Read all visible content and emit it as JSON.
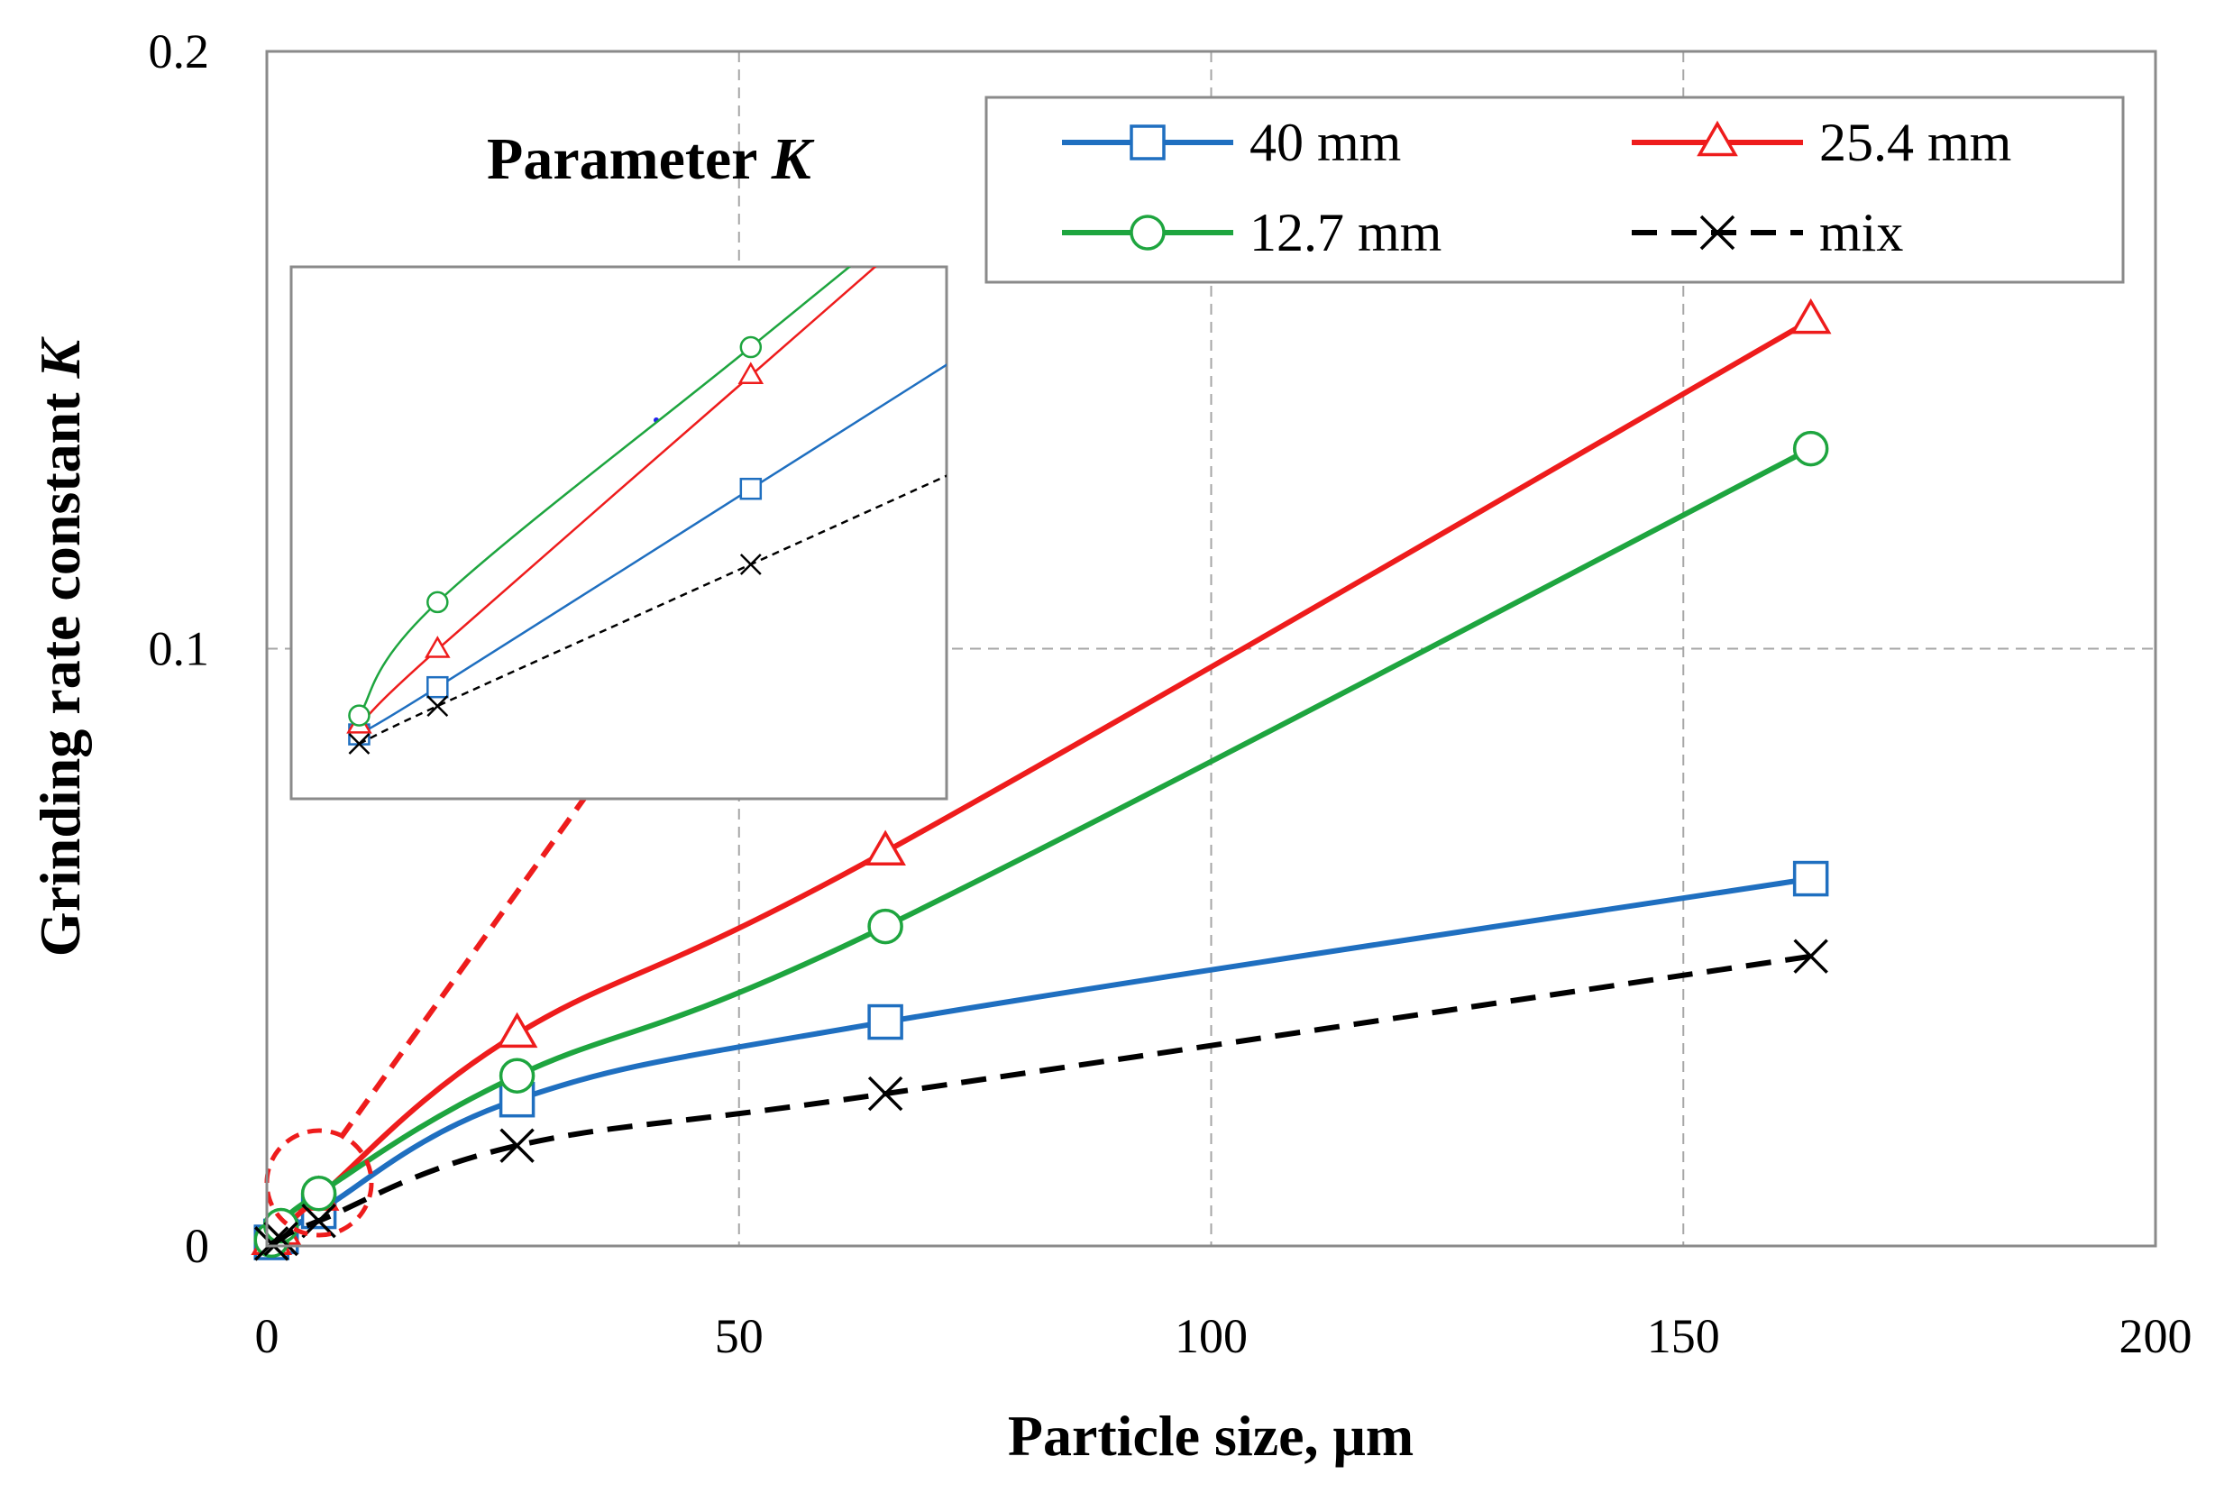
{
  "chart_data": {
    "type": "line",
    "xlabel": "Particle size, μm",
    "ylabel": "Grinding rate constant",
    "ylabel_italic": "K",
    "annotation": "Parameter",
    "annotation_italic": "K",
    "xlim": [
      0,
      200
    ],
    "ylim": [
      0,
      0.2
    ],
    "xticks": [
      0,
      50,
      100,
      150,
      200
    ],
    "xtick_labels": [
      "0",
      "50",
      "100",
      "150",
      "200"
    ],
    "yticks": [
      0,
      0.1,
      0.2
    ],
    "ytick_labels": [
      "0",
      "0.1",
      "0.2"
    ],
    "grid": true,
    "legend_position": "top-right",
    "series": [
      {
        "name": "40 mm",
        "color": "#1f6fc0",
        "marker": "square",
        "dash": "solid",
        "x": [
          0.5,
          1.5,
          5.5,
          26.5,
          65.5,
          163.5
        ],
        "y": [
          0.0006,
          0.0016,
          0.0058,
          0.0245,
          0.0375,
          0.0615
        ]
      },
      {
        "name": "25.4 mm",
        "color": "#ee1c1c",
        "marker": "triangle",
        "dash": "solid",
        "x": [
          0.5,
          1.5,
          5.5,
          26.5,
          65.5,
          163.5
        ],
        "y": [
          0.0008,
          0.0024,
          0.0082,
          0.0355,
          0.066,
          0.155
        ]
      },
      {
        "name": "12.7 mm",
        "color": "#1ea53f",
        "marker": "circle",
        "dash": "solid",
        "x": [
          0.5,
          1.5,
          5.5,
          26.5,
          65.5,
          163.5
        ],
        "y": [
          0.001,
          0.0034,
          0.0088,
          0.0285,
          0.0535,
          0.1335
        ]
      },
      {
        "name": "mix",
        "color": "#000000",
        "marker": "x",
        "dash": "dashed",
        "x": [
          0.5,
          1.5,
          5.5,
          26.5,
          65.5,
          163.5
        ],
        "y": [
          0.0004,
          0.0012,
          0.0042,
          0.0168,
          0.0255,
          0.0485
        ]
      }
    ],
    "inset": {
      "description": "zoom of the region near the origin",
      "series": [
        {
          "name": "40 mm",
          "x": [
            0.5,
            1.5,
            5.5
          ],
          "y": [
            0.0006,
            0.0016,
            0.0058
          ]
        },
        {
          "name": "25.4 mm",
          "x": [
            0.5,
            1.5,
            5.5
          ],
          "y": [
            0.0008,
            0.0024,
            0.0082
          ]
        },
        {
          "name": "12.7 mm",
          "x": [
            0.5,
            1.5,
            5.5
          ],
          "y": [
            0.001,
            0.0034,
            0.0088
          ]
        },
        {
          "name": "mix",
          "x": [
            0.5,
            1.5,
            5.5
          ],
          "y": [
            0.0004,
            0.0012,
            0.0042
          ]
        }
      ]
    }
  }
}
